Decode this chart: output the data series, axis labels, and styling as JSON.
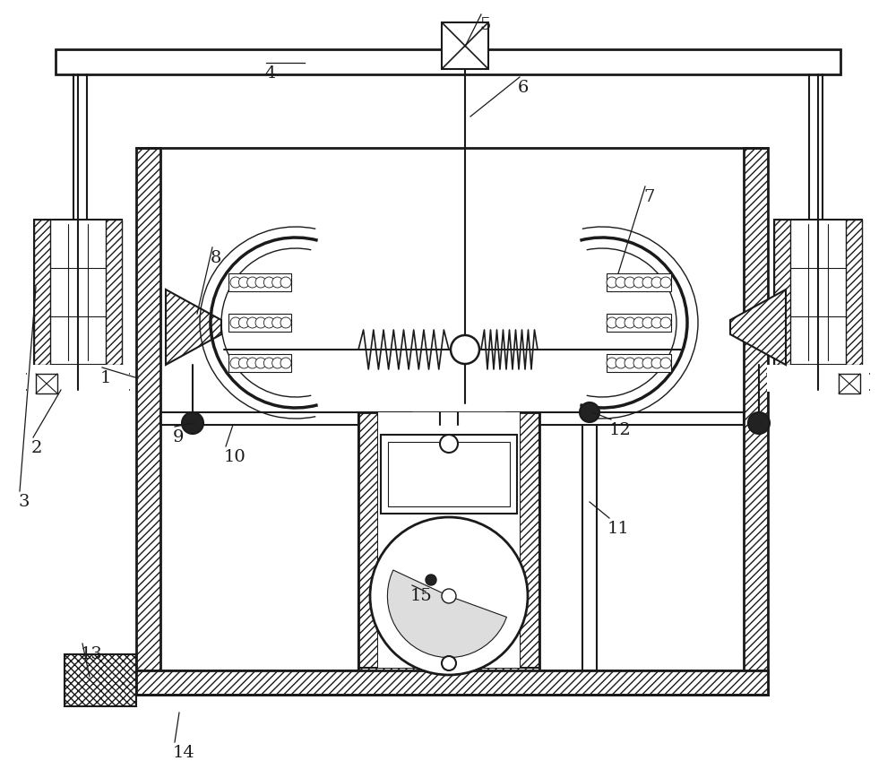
{
  "bg": "#ffffff",
  "lc": "#1a1a1a",
  "figw": 10.0,
  "figh": 8.68,
  "dpi": 100
}
